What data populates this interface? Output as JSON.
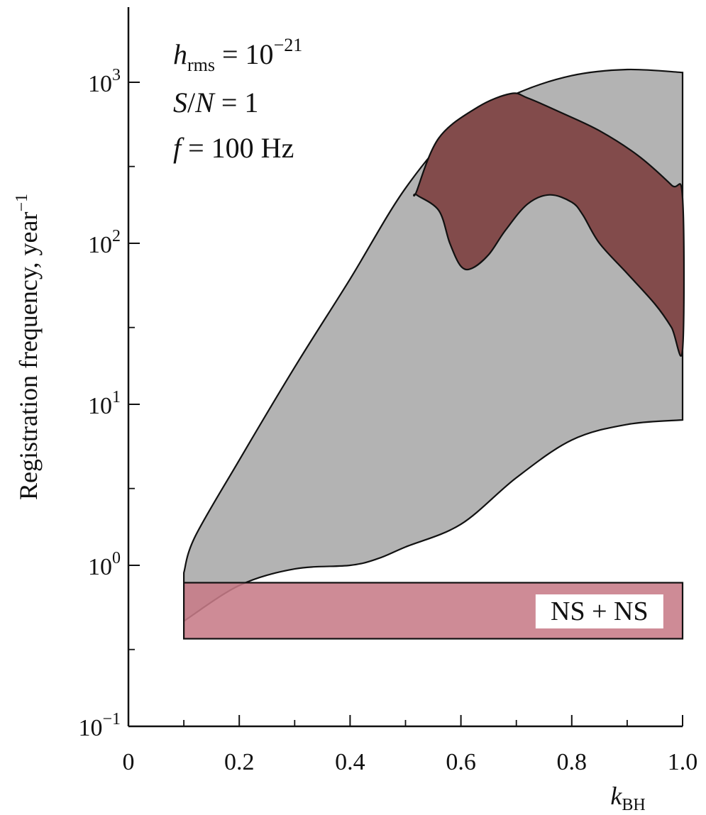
{
  "chart_data": {
    "type": "area",
    "yscale": "log",
    "xlim": [
      0,
      1.0
    ],
    "ylim": [
      0.1,
      3000
    ],
    "xlabel": {
      "main": "k",
      "sub": "BH"
    },
    "ylabel": "Registration frequency, year",
    "ylabel_sup": "−1",
    "x_ticks": [
      0,
      0.2,
      0.4,
      0.6,
      0.8,
      1.0
    ],
    "x_tick_labels": [
      "0",
      "0.2",
      "0.4",
      "0.6",
      "0.8",
      "1.0"
    ],
    "y_ticks": [
      {
        "value": 0.1,
        "base": "10",
        "exp": "−1"
      },
      {
        "value": 1,
        "base": "10",
        "exp": "0"
      },
      {
        "value": 10,
        "base": "10",
        "exp": "1"
      },
      {
        "value": 100,
        "base": "10",
        "exp": "2"
      },
      {
        "value": 1000,
        "base": "10",
        "exp": "3"
      }
    ],
    "annotations": [
      {
        "var": "h",
        "sub": "rms",
        "rest": " = 10",
        "sup": "−21"
      },
      {
        "var": "S",
        "rest": "/",
        "var2": "N",
        "rest2": " = 1"
      },
      {
        "var": "f",
        "rest": " = 100 Hz"
      }
    ],
    "series": [
      {
        "fill": "#b3b3b3",
        "upper": [
          [
            0.1,
            0.9
          ],
          [
            0.12,
            1.5
          ],
          [
            0.2,
            4.5
          ],
          [
            0.3,
            17
          ],
          [
            0.4,
            60
          ],
          [
            0.5,
            220
          ],
          [
            0.6,
            550
          ],
          [
            0.7,
            850
          ],
          [
            0.8,
            1100
          ],
          [
            0.9,
            1200
          ],
          [
            1.0,
            1150
          ]
        ],
        "lower": [
          [
            0.1,
            0.45
          ],
          [
            0.2,
            0.75
          ],
          [
            0.3,
            0.95
          ],
          [
            0.4,
            1.0
          ],
          [
            0.45,
            1.1
          ],
          [
            0.5,
            1.3
          ],
          [
            0.6,
            1.8
          ],
          [
            0.7,
            3.5
          ],
          [
            0.8,
            6.0
          ],
          [
            0.9,
            7.5
          ],
          [
            1.0,
            8.0
          ]
        ]
      },
      {
        "fill": "#824b4b",
        "outline": [
          [
            0.52,
            210
          ],
          [
            0.56,
            450
          ],
          [
            0.63,
            700
          ],
          [
            0.69,
            850
          ],
          [
            0.72,
            800
          ],
          [
            0.78,
            650
          ],
          [
            0.85,
            500
          ],
          [
            0.92,
            350
          ],
          [
            0.98,
            230
          ],
          [
            1.0,
            190
          ],
          [
            1.0,
            22
          ],
          [
            0.98,
            30
          ],
          [
            0.95,
            42
          ],
          [
            0.9,
            65
          ],
          [
            0.85,
            100
          ],
          [
            0.82,
            150
          ],
          [
            0.8,
            180
          ],
          [
            0.76,
            200
          ],
          [
            0.72,
            175
          ],
          [
            0.68,
            120
          ],
          [
            0.65,
            85
          ],
          [
            0.62,
            70
          ],
          [
            0.6,
            72
          ],
          [
            0.58,
            100
          ],
          [
            0.56,
            160
          ],
          [
            0.52,
            200
          ]
        ]
      },
      {
        "name": "NS + NS",
        "fill": "#c77b87",
        "x": [
          0.1,
          1.0
        ],
        "y": [
          0.35,
          0.78
        ]
      }
    ]
  }
}
